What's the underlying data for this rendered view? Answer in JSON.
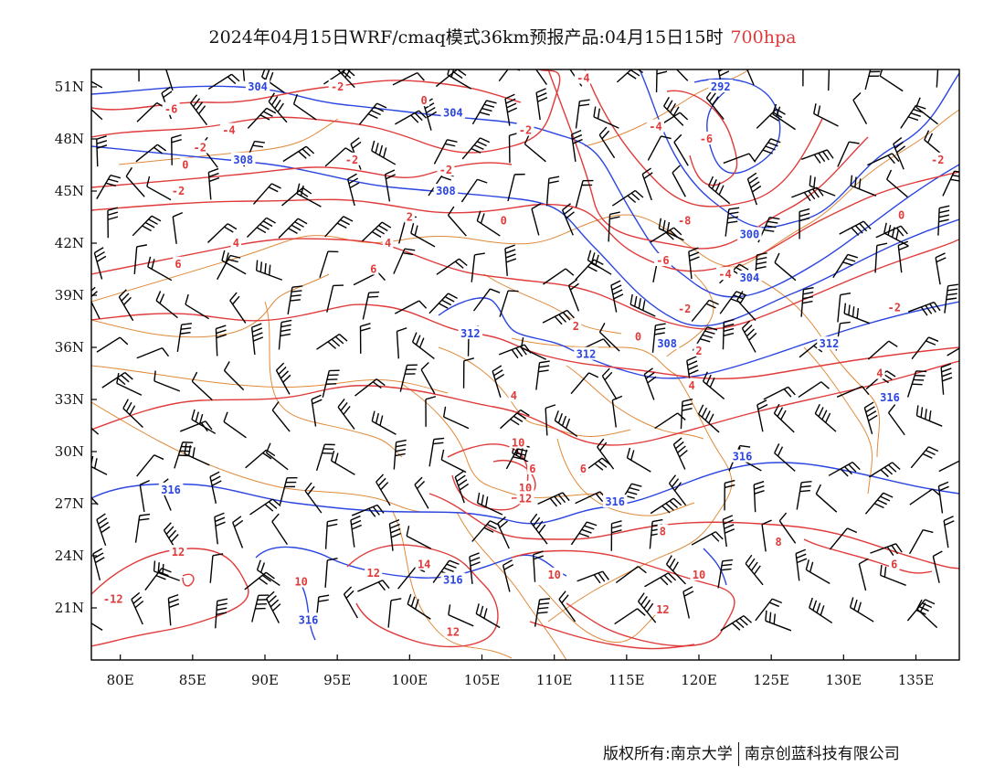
{
  "title": {
    "main": "2024年04月15日WRF/cmaq模式36km预报产品:04月15日15时",
    "level": "700hpa"
  },
  "axes": {
    "lon_ticks": [
      "80E",
      "85E",
      "90E",
      "95E",
      "100E",
      "105E",
      "110E",
      "115E",
      "120E",
      "125E",
      "130E",
      "135E"
    ],
    "lat_ticks": [
      "21N",
      "24N",
      "27N",
      "30N",
      "33N",
      "36N",
      "39N",
      "42N",
      "45N",
      "48N",
      "51N"
    ],
    "lon_range": [
      78,
      138
    ],
    "lat_range": [
      18,
      52
    ]
  },
  "colors": {
    "height_contour": "#2b45e0",
    "temperature_contour": "#e03a3a",
    "boundary": "#e08a3a",
    "wind_barb": "#000000",
    "level_text": "#e03a3a"
  },
  "height_labels": [
    {
      "text": "304",
      "lon": 89.5,
      "lat": 51.0
    },
    {
      "text": "304",
      "lon": 103.0,
      "lat": 49.5
    },
    {
      "text": "292",
      "lon": 121.5,
      "lat": 51.0
    },
    {
      "text": "308",
      "lon": 88.5,
      "lat": 46.8
    },
    {
      "text": "308",
      "lon": 102.5,
      "lat": 45.0
    },
    {
      "text": "300",
      "lon": 123.5,
      "lat": 42.5
    },
    {
      "text": "304",
      "lon": 123.5,
      "lat": 40.0
    },
    {
      "text": "312",
      "lon": 104.2,
      "lat": 36.8
    },
    {
      "text": "312",
      "lon": 112.2,
      "lat": 35.6
    },
    {
      "text": "308",
      "lon": 117.8,
      "lat": 36.2
    },
    {
      "text": "312",
      "lon": 129.0,
      "lat": 36.2
    },
    {
      "text": "316",
      "lon": 133.2,
      "lat": 33.1
    },
    {
      "text": "316",
      "lon": 123.0,
      "lat": 29.7
    },
    {
      "text": "316",
      "lon": 114.2,
      "lat": 27.1
    },
    {
      "text": "316",
      "lon": 83.5,
      "lat": 27.8
    },
    {
      "text": "316",
      "lon": 103.0,
      "lat": 22.6
    },
    {
      "text": "316",
      "lon": 93.0,
      "lat": 20.3
    }
  ],
  "temperature_labels": [
    {
      "text": "-6",
      "lon": 83.5,
      "lat": 49.7
    },
    {
      "text": "-2",
      "lon": 95.0,
      "lat": 51.0
    },
    {
      "text": "0",
      "lon": 101.0,
      "lat": 50.2
    },
    {
      "text": "-4",
      "lon": 112.0,
      "lat": 51.5
    },
    {
      "text": "-4",
      "lon": 87.5,
      "lat": 48.5
    },
    {
      "text": "-2",
      "lon": 85.5,
      "lat": 47.5
    },
    {
      "text": "-2",
      "lon": 96.0,
      "lat": 46.8
    },
    {
      "text": "-2",
      "lon": 102.5,
      "lat": 46.2
    },
    {
      "text": "-2",
      "lon": 108.0,
      "lat": 48.5
    },
    {
      "text": "-4",
      "lon": 117.0,
      "lat": 48.7
    },
    {
      "text": "-6",
      "lon": 120.5,
      "lat": 48.0
    },
    {
      "text": "-2",
      "lon": 136.5,
      "lat": 46.8
    },
    {
      "text": "0",
      "lon": 84.5,
      "lat": 46.5
    },
    {
      "text": "-2",
      "lon": 84.0,
      "lat": 45.0
    },
    {
      "text": "2",
      "lon": 100.0,
      "lat": 43.5
    },
    {
      "text": "0",
      "lon": 106.5,
      "lat": 43.3
    },
    {
      "text": "-8",
      "lon": 119.0,
      "lat": 43.3
    },
    {
      "text": "0",
      "lon": 134.0,
      "lat": 43.6
    },
    {
      "text": "4",
      "lon": 88.0,
      "lat": 42.0
    },
    {
      "text": "4",
      "lon": 98.5,
      "lat": 42.0
    },
    {
      "text": "6",
      "lon": 84.0,
      "lat": 40.8
    },
    {
      "text": "6",
      "lon": 97.5,
      "lat": 40.5
    },
    {
      "text": "-6",
      "lon": 117.5,
      "lat": 41.0
    },
    {
      "text": "-4",
      "lon": 121.8,
      "lat": 40.2
    },
    {
      "text": "-2",
      "lon": 119.0,
      "lat": 38.2
    },
    {
      "text": "-2",
      "lon": 133.5,
      "lat": 38.3
    },
    {
      "text": "2",
      "lon": 111.5,
      "lat": 37.2
    },
    {
      "text": "0",
      "lon": 115.8,
      "lat": 36.6
    },
    {
      "text": "2",
      "lon": 120.0,
      "lat": 35.8
    },
    {
      "text": "4",
      "lon": 107.2,
      "lat": 33.2
    },
    {
      "text": "4",
      "lon": 119.5,
      "lat": 33.8
    },
    {
      "text": "4",
      "lon": 132.5,
      "lat": 34.5
    },
    {
      "text": "10",
      "lon": 107.5,
      "lat": 30.5
    },
    {
      "text": "6",
      "lon": 108.5,
      "lat": 29.0
    },
    {
      "text": "6",
      "lon": 112.0,
      "lat": 29.0
    },
    {
      "text": "10",
      "lon": 108.0,
      "lat": 27.9
    },
    {
      "text": "12",
      "lon": 108.0,
      "lat": 27.3
    },
    {
      "text": "8",
      "lon": 117.5,
      "lat": 25.4
    },
    {
      "text": "8",
      "lon": 125.5,
      "lat": 24.8
    },
    {
      "text": "6",
      "lon": 133.5,
      "lat": 23.5
    },
    {
      "text": "12",
      "lon": 84.0,
      "lat": 24.2
    },
    {
      "text": "12",
      "lon": 97.5,
      "lat": 23.0
    },
    {
      "text": "14",
      "lon": 101.0,
      "lat": 23.5
    },
    {
      "text": "10",
      "lon": 110.0,
      "lat": 22.9
    },
    {
      "text": "10",
      "lon": 120.0,
      "lat": 22.9
    },
    {
      "text": "10",
      "lon": 92.5,
      "lat": 22.5
    },
    {
      "text": "-12",
      "lon": 79.5,
      "lat": 21.5
    },
    {
      "text": "12",
      "lon": 117.5,
      "lat": 20.9
    },
    {
      "text": "12",
      "lon": 103.0,
      "lat": 19.6
    }
  ],
  "copyright": {
    "left": "版权所有:南京大学",
    "right": "南京创蓝科技有限公司"
  }
}
